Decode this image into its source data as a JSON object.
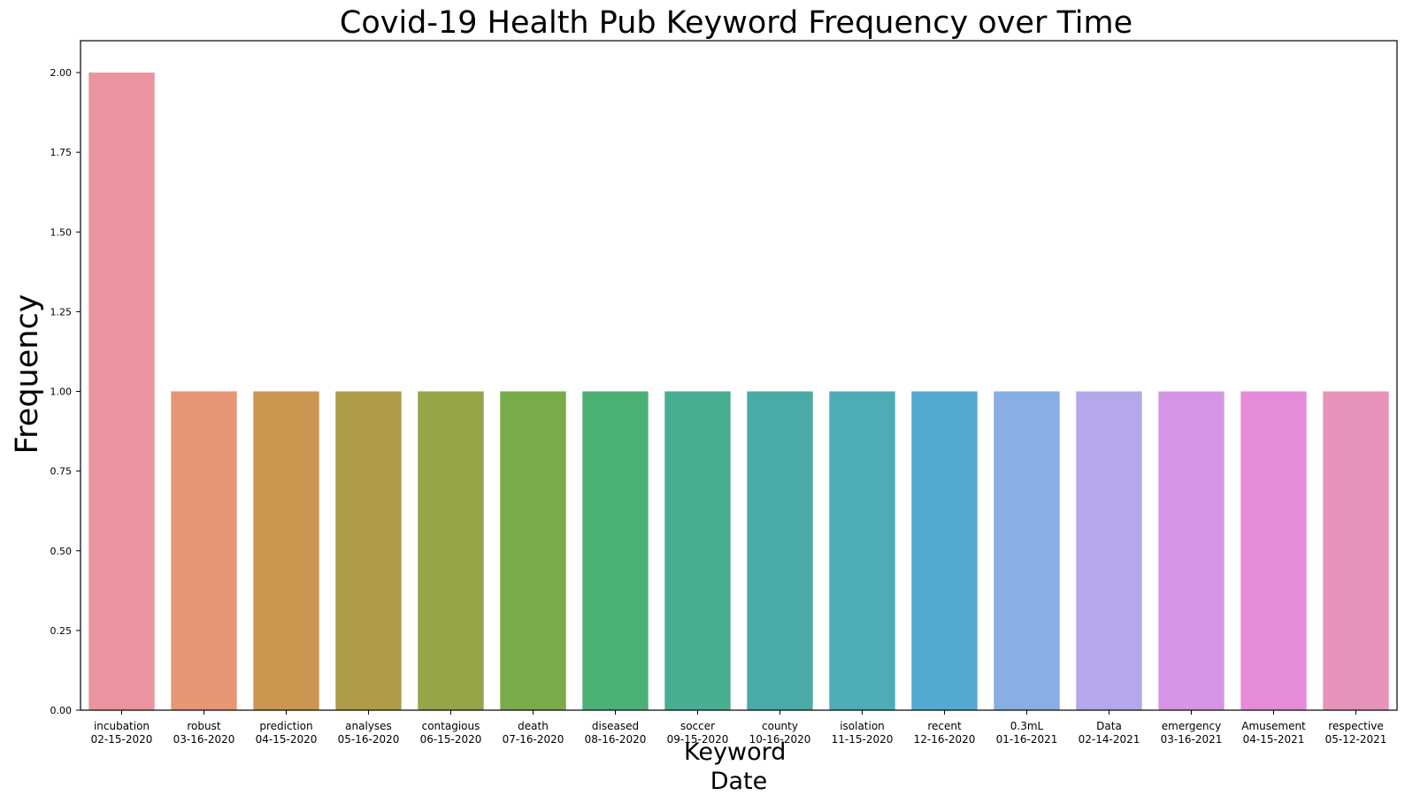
{
  "chart_data": {
    "type": "bar",
    "title": "Covid-19 Health Pub Keyword Frequency over Time",
    "xlabel": "Keyword\nDate",
    "ylabel": "Frequency",
    "ylim": [
      0,
      2.1
    ],
    "yticks": [
      "0.00",
      "0.25",
      "0.50",
      "0.75",
      "1.00",
      "1.25",
      "1.50",
      "1.75",
      "2.00"
    ],
    "grid": false,
    "categories": [
      {
        "keyword": "incubation",
        "date": "02-15-2020"
      },
      {
        "keyword": "robust",
        "date": "03-16-2020"
      },
      {
        "keyword": "prediction",
        "date": "04-15-2020"
      },
      {
        "keyword": "analyses",
        "date": "05-16-2020"
      },
      {
        "keyword": "contagious",
        "date": "06-15-2020"
      },
      {
        "keyword": "death",
        "date": "07-16-2020"
      },
      {
        "keyword": "diseased",
        "date": "08-16-2020"
      },
      {
        "keyword": "soccer",
        "date": "09-15-2020"
      },
      {
        "keyword": "county",
        "date": "10-16-2020"
      },
      {
        "keyword": "isolation",
        "date": "11-15-2020"
      },
      {
        "keyword": "recent",
        "date": "12-16-2020"
      },
      {
        "keyword": "0.3mL",
        "date": "01-16-2021"
      },
      {
        "keyword": "Data",
        "date": "02-14-2021"
      },
      {
        "keyword": "emergency",
        "date": "03-16-2021"
      },
      {
        "keyword": "Amusement",
        "date": "04-15-2021"
      },
      {
        "keyword": "respective",
        "date": "05-12-2021"
      }
    ],
    "values": [
      2,
      1,
      1,
      1,
      1,
      1,
      1,
      1,
      1,
      1,
      1,
      1,
      1,
      1,
      1,
      1
    ],
    "colors": [
      "#e9949f",
      "#e69575",
      "#cb9650",
      "#ae9c48",
      "#97a447",
      "#78ab4a",
      "#4bb073",
      "#49ad91",
      "#4aaaa5",
      "#4eabb8",
      "#52a9d2",
      "#88aee3",
      "#b5a7e9",
      "#d496e4",
      "#e58bd8",
      "#e792bb"
    ]
  }
}
